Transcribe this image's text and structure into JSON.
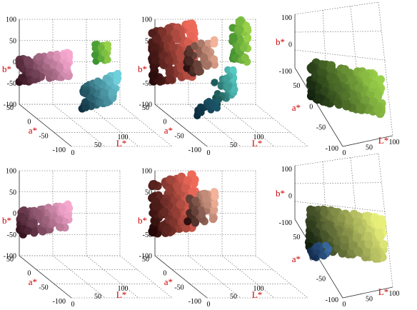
{
  "chart_data": [
    {
      "type": "scatter",
      "view": "side",
      "clusters": [
        "magenta-pink",
        "green-cyan"
      ],
      "axes": {
        "a": {
          "label": "a*",
          "ticks": [
            "50",
            "0",
            "-50",
            "-100"
          ]
        },
        "b": {
          "label": "b*",
          "ticks": [
            "100",
            "50",
            "0",
            "-50",
            "-100"
          ]
        },
        "L": {
          "label": "L*",
          "ticks": [
            "0",
            "50",
            "100"
          ]
        }
      },
      "ranges": {
        "L": [
          0,
          100
        ],
        "a": [
          -100,
          50
        ],
        "b": [
          -100,
          100
        ]
      },
      "grid": true
    },
    {
      "type": "scatter",
      "view": "side",
      "clusters": [
        "red",
        "green-cyan"
      ],
      "axes": {
        "a": {
          "label": "a*",
          "ticks": [
            "50",
            "0",
            "-50",
            "-100"
          ]
        },
        "b": {
          "label": "b*",
          "ticks": [
            "100",
            "50",
            "0",
            "-50",
            "-100"
          ]
        },
        "L": {
          "label": "L*",
          "ticks": [
            "0",
            "50",
            "100"
          ]
        }
      },
      "ranges": {
        "L": [
          0,
          100
        ],
        "a": [
          -100,
          50
        ],
        "b": [
          -100,
          100
        ]
      },
      "grid": true
    },
    {
      "type": "scatter",
      "view": "top",
      "clusters": [
        "green-dark"
      ],
      "axes": {
        "a": {
          "label": "a*",
          "ticks": [
            "50",
            "0",
            "-50",
            "-100"
          ]
        },
        "b": {
          "label": "b*",
          "ticks": [
            "100",
            "0",
            "-100"
          ]
        },
        "L": {
          "label": "L*",
          "ticks": [
            "0",
            "50",
            "100"
          ]
        }
      },
      "ranges": {
        "L": [
          0,
          100
        ],
        "a": [
          -100,
          50
        ],
        "b": [
          -100,
          100
        ]
      },
      "grid": true
    },
    {
      "type": "scatter",
      "view": "side",
      "clusters": [
        "magenta-pink"
      ],
      "axes": {
        "a": {
          "label": "a*",
          "ticks": [
            "50",
            "0",
            "-50",
            "-100"
          ]
        },
        "b": {
          "label": "b*",
          "ticks": [
            "100",
            "50",
            "0",
            "-50",
            "-100"
          ]
        },
        "L": {
          "label": "L*",
          "ticks": [
            "0",
            "50",
            "100"
          ]
        }
      },
      "ranges": {
        "L": [
          0,
          100
        ],
        "a": [
          -100,
          50
        ],
        "b": [
          -100,
          100
        ]
      },
      "grid": true
    },
    {
      "type": "scatter",
      "view": "side",
      "clusters": [
        "red"
      ],
      "axes": {
        "a": {
          "label": "a*",
          "ticks": [
            "50",
            "0",
            "-50",
            "-100"
          ]
        },
        "b": {
          "label": "b*",
          "ticks": [
            "100",
            "50",
            "0",
            "-50",
            "-100"
          ]
        },
        "L": {
          "label": "L*",
          "ticks": [
            "0",
            "50",
            "100"
          ]
        }
      },
      "ranges": {
        "L": [
          0,
          100
        ],
        "a": [
          -100,
          50
        ],
        "b": [
          -100,
          100
        ]
      },
      "grid": true
    },
    {
      "type": "scatter",
      "view": "top",
      "clusters": [
        "green-yellow"
      ],
      "axes": {
        "a": {
          "label": "a*",
          "ticks": [
            "50",
            "0",
            "-50",
            "-100"
          ]
        },
        "b": {
          "label": "b*",
          "ticks": [
            "100",
            "0",
            "-100"
          ]
        },
        "L": {
          "label": "L*",
          "ticks": [
            "0",
            "50",
            "100"
          ]
        }
      },
      "ranges": {
        "L": [
          0,
          100
        ],
        "a": [
          -100,
          50
        ],
        "b": [
          -100,
          100
        ]
      },
      "grid": true
    }
  ],
  "colors": {
    "axis_label": "#cc0000",
    "magenta_dark": "#2a0a14",
    "magenta_light": "#f7a8cf",
    "red_dark": "#1e0606",
    "red_light": "#f06a5a",
    "green_dark": "#0c1a0c",
    "green_light": "#9ad14a",
    "cyan_dark": "#0a2a3a",
    "cyan_light": "#6fd0dc",
    "yellow_light": "#e8f07a"
  }
}
